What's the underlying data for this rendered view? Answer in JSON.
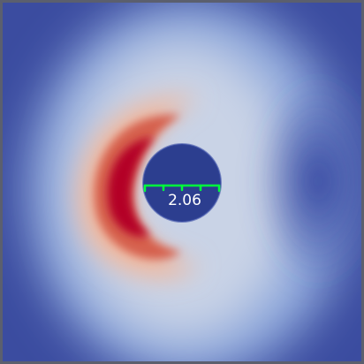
{
  "viewport": {
    "ruler_label": "2.06"
  },
  "colors": {
    "frame": "#5b5f6e",
    "background_field": "#3b4ca0",
    "high_field": "#b40426",
    "mid_field": "#dcdcdc",
    "cylinder": "#2c3e8f",
    "ruler": "#00ff3c",
    "label_text": "#ffffff"
  }
}
